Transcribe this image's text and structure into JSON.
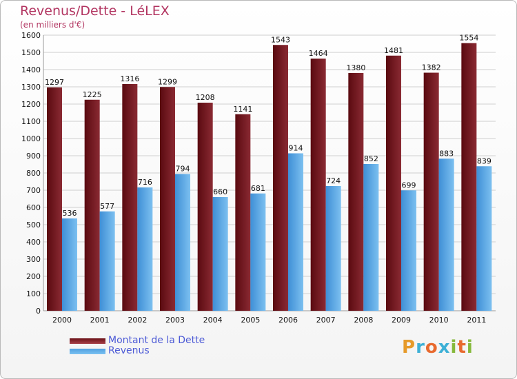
{
  "title": "Revenus/Dette - LéLEX",
  "subtitle": "(en milliers d'€)",
  "logo": {
    "text": "Proxiti",
    "letter_colors": [
      "#e69a2a",
      "#3db0d6",
      "#e86a2f",
      "#3db0d6",
      "#86b93c",
      "#e86a2f",
      "#86b93c"
    ]
  },
  "colors": {
    "dette": "#6b1016",
    "dette_light": "#a8414a",
    "revenus": "#4f9fe0",
    "revenus_light": "#7cc2f2",
    "grid": "#cfcfcf",
    "axis_text": "#111111"
  },
  "chart_data": {
    "type": "bar",
    "title": "Revenus/Dette - LéLEX",
    "subtitle": "(en milliers d'€)",
    "categories": [
      "2000",
      "2001",
      "2002",
      "2003",
      "2004",
      "2005",
      "2006",
      "2007",
      "2008",
      "2009",
      "2010",
      "2011"
    ],
    "series": [
      {
        "name": "Montant de la Dette",
        "values": [
          1297,
          1225,
          1316,
          1299,
          1208,
          1141,
          1543,
          1464,
          1380,
          1481,
          1382,
          1554
        ]
      },
      {
        "name": "Revenus",
        "values": [
          536,
          577,
          716,
          794,
          660,
          681,
          914,
          724,
          852,
          699,
          883,
          839
        ]
      }
    ],
    "ylim": [
      0,
      1600
    ],
    "yticks": [
      0,
      100,
      200,
      300,
      400,
      500,
      600,
      700,
      800,
      900,
      1000,
      1100,
      1200,
      1300,
      1400,
      1500,
      1600
    ],
    "grid": true,
    "legend_position": "bottom-left"
  }
}
